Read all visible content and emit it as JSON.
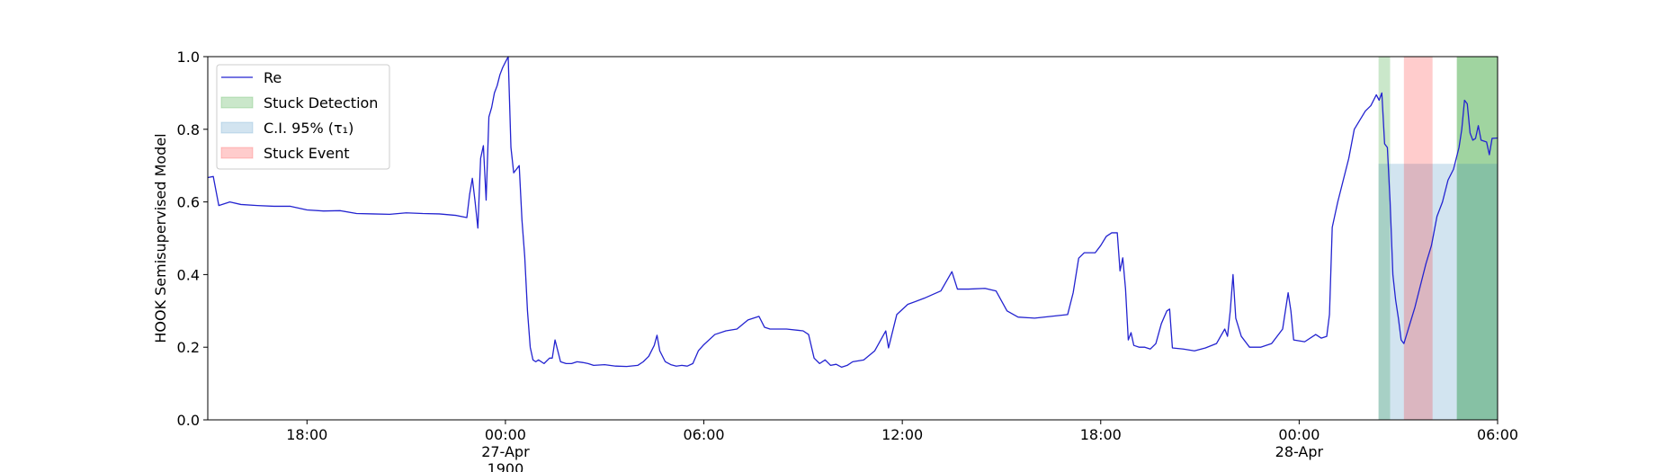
{
  "chart_data": {
    "type": "line",
    "ylabel": "HOOK Semisupervised Model",
    "xlim": [
      "1900-04-26 15:00",
      "1900-04-28 06:00"
    ],
    "ylim": [
      0,
      1
    ],
    "yticks": [
      {
        "value": 0,
        "label": "0.0"
      },
      0.2,
      0.4,
      0.6,
      0.8,
      {
        "value": 1,
        "label": "1.0"
      }
    ],
    "xticks": [
      {
        "value": "1900-04-26 18:00",
        "label": "18:00"
      },
      {
        "value": "1900-04-27 00:00",
        "label": "00:00\n27-Apr\n1900"
      },
      {
        "value": "1900-04-27 06:00",
        "label": "06:00"
      },
      {
        "value": "1900-04-27 12:00",
        "label": "12:00"
      },
      {
        "value": "1900-04-27 18:00",
        "label": "18:00"
      },
      {
        "value": "1900-04-28 00:00",
        "label": "00:00\n28-Apr"
      },
      {
        "value": "1900-04-28 06:00",
        "label": "06:00"
      }
    ],
    "legend": "upper left",
    "x": [
      "1900-04-26 15:00",
      "1900-04-26 15:10",
      "1900-04-26 15:15",
      "1900-04-26 15:20",
      "1900-04-26 15:40",
      "1900-04-26 16:00",
      "1900-04-26 16:30",
      "1900-04-26 17:00",
      "1900-04-26 17:30",
      "1900-04-26 18:00",
      "1900-04-26 18:30",
      "1900-04-26 19:00",
      "1900-04-26 19:30",
      "1900-04-26 20:00",
      "1900-04-26 20:30",
      "1900-04-26 21:00",
      "1900-04-26 21:30",
      "1900-04-26 22:00",
      "1900-04-26 22:30",
      "1900-04-26 22:50",
      "1900-04-26 22:55",
      "1900-04-26 23:00",
      "1900-04-26 23:05",
      "1900-04-26 23:10",
      "1900-04-26 23:15",
      "1900-04-26 23:20",
      "1900-04-26 23:25",
      "1900-04-26 23:30",
      "1900-04-26 23:35",
      "1900-04-26 23:40",
      "1900-04-26 23:45",
      "1900-04-26 23:50",
      "1900-04-26 23:55",
      "1900-04-27 00:00",
      "1900-04-27 00:05",
      "1900-04-27 00:10",
      "1900-04-27 00:15",
      "1900-04-27 00:20",
      "1900-04-27 00:25",
      "1900-04-27 00:30",
      "1900-04-27 00:35",
      "1900-04-27 00:40",
      "1900-04-27 00:45",
      "1900-04-27 00:50",
      "1900-04-27 00:55",
      "1900-04-27 01:00",
      "1900-04-27 01:10",
      "1900-04-27 01:20",
      "1900-04-27 01:25",
      "1900-04-27 01:30",
      "1900-04-27 01:40",
      "1900-04-27 01:50",
      "1900-04-27 02:00",
      "1900-04-27 02:10",
      "1900-04-27 02:20",
      "1900-04-27 02:30",
      "1900-04-27 02:40",
      "1900-04-27 03:00",
      "1900-04-27 03:20",
      "1900-04-27 03:40",
      "1900-04-27 04:00",
      "1900-04-27 04:10",
      "1900-04-27 04:20",
      "1900-04-27 04:30",
      "1900-04-27 04:35",
      "1900-04-27 04:40",
      "1900-04-27 04:50",
      "1900-04-27 05:00",
      "1900-04-27 05:10",
      "1900-04-27 05:20",
      "1900-04-27 05:30",
      "1900-04-27 05:40",
      "1900-04-27 05:50",
      "1900-04-27 06:00",
      "1900-04-27 06:20",
      "1900-04-27 06:40",
      "1900-04-27 07:00",
      "1900-04-27 07:20",
      "1900-04-27 07:40",
      "1900-04-27 07:50",
      "1900-04-27 08:00",
      "1900-04-27 08:30",
      "1900-04-27 09:00",
      "1900-04-27 09:10",
      "1900-04-27 09:20",
      "1900-04-27 09:30",
      "1900-04-27 09:40",
      "1900-04-27 09:50",
      "1900-04-27 10:00",
      "1900-04-27 10:10",
      "1900-04-27 10:20",
      "1900-04-27 10:30",
      "1900-04-27 10:50",
      "1900-04-27 11:10",
      "1900-04-27 11:30",
      "1900-04-27 11:35",
      "1900-04-27 11:50",
      "1900-04-27 12:10",
      "1900-04-27 12:40",
      "1900-04-27 13:10",
      "1900-04-27 13:30",
      "1900-04-27 13:40",
      "1900-04-27 14:00",
      "1900-04-27 14:30",
      "1900-04-27 14:50",
      "1900-04-27 15:10",
      "1900-04-27 15:30",
      "1900-04-27 16:00",
      "1900-04-27 16:30",
      "1900-04-27 17:00",
      "1900-04-27 17:10",
      "1900-04-27 17:20",
      "1900-04-27 17:30",
      "1900-04-27 17:50",
      "1900-04-27 18:00",
      "1900-04-27 18:10",
      "1900-04-27 18:20",
      "1900-04-27 18:30",
      "1900-04-27 18:35",
      "1900-04-27 18:40",
      "1900-04-27 18:45",
      "1900-04-27 18:50",
      "1900-04-27 18:55",
      "1900-04-27 19:00",
      "1900-04-27 19:10",
      "1900-04-27 19:20",
      "1900-04-27 19:30",
      "1900-04-27 19:40",
      "1900-04-27 19:50",
      "1900-04-27 20:00",
      "1900-04-27 20:05",
      "1900-04-27 20:10",
      "1900-04-27 20:30",
      "1900-04-27 20:50",
      "1900-04-27 21:10",
      "1900-04-27 21:30",
      "1900-04-27 21:45",
      "1900-04-27 21:50",
      "1900-04-27 21:55",
      "1900-04-27 22:00",
      "1900-04-27 22:05",
      "1900-04-27 22:15",
      "1900-04-27 22:30",
      "1900-04-27 22:50",
      "1900-04-27 23:10",
      "1900-04-27 23:30",
      "1900-04-27 23:40",
      "1900-04-27 23:45",
      "1900-04-27 23:50",
      "1900-04-28 00:10",
      "1900-04-28 00:30",
      "1900-04-28 00:40",
      "1900-04-28 00:50",
      "1900-04-28 00:55",
      "1900-04-28 01:00",
      "1900-04-28 01:10",
      "1900-04-28 01:20",
      "1900-04-28 01:30",
      "1900-04-28 01:40",
      "1900-04-28 01:50",
      "1900-04-28 02:00",
      "1900-04-28 02:10",
      "1900-04-28 02:20",
      "1900-04-28 02:25",
      "1900-04-28 02:30",
      "1900-04-28 02:35",
      "1900-04-28 02:40",
      "1900-04-28 02:45",
      "1900-04-28 02:50",
      "1900-04-28 02:55",
      "1900-04-28 03:00",
      "1900-04-28 03:05",
      "1900-04-28 03:10",
      "1900-04-28 03:20",
      "1900-04-28 03:30",
      "1900-04-28 03:40",
      "1900-04-28 03:50",
      "1900-04-28 04:00",
      "1900-04-28 04:10",
      "1900-04-28 04:20",
      "1900-04-28 04:30",
      "1900-04-28 04:40",
      "1900-04-28 04:50",
      "1900-04-28 04:55",
      "1900-04-28 05:00",
      "1900-04-28 05:05",
      "1900-04-28 05:10",
      "1900-04-28 05:15",
      "1900-04-28 05:20",
      "1900-04-28 05:25",
      "1900-04-28 05:30",
      "1900-04-28 05:40",
      "1900-04-28 05:45",
      "1900-04-28 05:50",
      "1900-04-28 06:00"
    ],
    "series": [
      {
        "name": "Re",
        "color": "#2323d0",
        "values": [
          0.667,
          0.67,
          0.63,
          0.59,
          0.6,
          0.593,
          0.59,
          0.588,
          0.588,
          0.578,
          0.575,
          0.576,
          0.568,
          0.567,
          0.566,
          0.57,
          0.568,
          0.567,
          0.563,
          0.557,
          0.62,
          0.665,
          0.6,
          0.528,
          0.72,
          0.755,
          0.605,
          0.834,
          0.86,
          0.9,
          0.92,
          0.95,
          0.97,
          0.985,
          1.0,
          0.75,
          0.68,
          0.69,
          0.7,
          0.55,
          0.45,
          0.3,
          0.2,
          0.165,
          0.16,
          0.165,
          0.155,
          0.17,
          0.17,
          0.22,
          0.16,
          0.155,
          0.155,
          0.16,
          0.158,
          0.155,
          0.15,
          0.152,
          0.148,
          0.147,
          0.15,
          0.16,
          0.175,
          0.205,
          0.233,
          0.19,
          0.16,
          0.152,
          0.148,
          0.15,
          0.148,
          0.155,
          0.19,
          0.207,
          0.235,
          0.245,
          0.25,
          0.275,
          0.285,
          0.255,
          0.25,
          0.25,
          0.245,
          0.235,
          0.17,
          0.155,
          0.165,
          0.15,
          0.153,
          0.145,
          0.15,
          0.16,
          0.165,
          0.19,
          0.245,
          0.198,
          0.29,
          0.318,
          0.335,
          0.355,
          0.408,
          0.36,
          0.36,
          0.362,
          0.355,
          0.3,
          0.283,
          0.28,
          0.285,
          0.29,
          0.35,
          0.445,
          0.46,
          0.46,
          0.48,
          0.505,
          0.515,
          0.515,
          0.41,
          0.446,
          0.36,
          0.22,
          0.24,
          0.205,
          0.2,
          0.2,
          0.195,
          0.21,
          0.265,
          0.3,
          0.305,
          0.198,
          0.195,
          0.19,
          0.198,
          0.21,
          0.25,
          0.23,
          0.3,
          0.4,
          0.28,
          0.23,
          0.2,
          0.2,
          0.21,
          0.25,
          0.35,
          0.3,
          0.22,
          0.215,
          0.235,
          0.225,
          0.23,
          0.29,
          0.53,
          0.6,
          0.66,
          0.72,
          0.8,
          0.825,
          0.85,
          0.865,
          0.895,
          0.88,
          0.9,
          0.76,
          0.75,
          0.6,
          0.4,
          0.33,
          0.28,
          0.22,
          0.21,
          0.26,
          0.31,
          0.37,
          0.43,
          0.48,
          0.56,
          0.6,
          0.66,
          0.69,
          0.75,
          0.8,
          0.88,
          0.87,
          0.79,
          0.77,
          0.775,
          0.81,
          0.77,
          0.765,
          0.73,
          0.775,
          0.776
        ]
      }
    ],
    "bands": [
      {
        "name": "Stuck Detection",
        "color": "#2ca02c",
        "opacity": 0.25,
        "regions": [
          {
            "x": [
              "1900-04-28 02:24",
              "1900-04-28 02:45"
            ],
            "y": [
              0,
              1
            ]
          },
          {
            "x": [
              "1900-04-28 04:46",
              "1900-04-28 06:00"
            ],
            "y": [
              0,
              1
            ],
            "opacity": 0.45
          }
        ]
      },
      {
        "name": "C.I. 95% (τ₁)",
        "color": "#1f77b4",
        "opacity": 0.2,
        "regions": [
          {
            "x": [
              "1900-04-28 02:24",
              "1900-04-28 06:00"
            ],
            "y": [
              0,
              0.705
            ]
          }
        ]
      },
      {
        "name": "Stuck Event",
        "color": "#ff0000",
        "opacity": 0.2,
        "regions": [
          {
            "x": [
              "1900-04-28 03:10",
              "1900-04-28 04:02"
            ],
            "y": [
              0,
              1
            ]
          }
        ]
      }
    ]
  }
}
